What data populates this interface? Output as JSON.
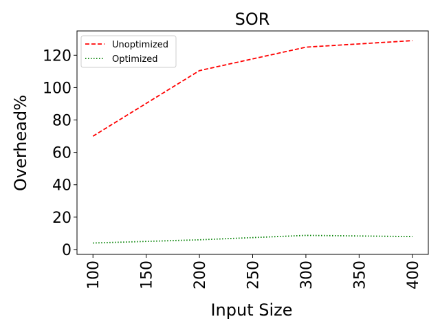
{
  "chart_data": {
    "type": "line",
    "title": "SOR",
    "xlabel": "Input Size",
    "ylabel": "Overhead%",
    "x": [
      100,
      200,
      300,
      400
    ],
    "xlim": [
      85,
      415
    ],
    "ylim": [
      -3,
      135
    ],
    "xticks": [
      100,
      150,
      200,
      250,
      300,
      350,
      400
    ],
    "yticks": [
      0,
      20,
      40,
      60,
      80,
      100,
      120
    ],
    "grid": false,
    "legend_position": "top-left",
    "series": [
      {
        "name": "Unoptimized",
        "values": [
          70,
          110.5,
          125,
          129
        ],
        "color": "#ff0000",
        "style": "dashed"
      },
      {
        "name": "Optimized",
        "values": [
          4,
          6,
          8.7,
          8
        ],
        "color": "#008000",
        "style": "dotted"
      }
    ]
  }
}
